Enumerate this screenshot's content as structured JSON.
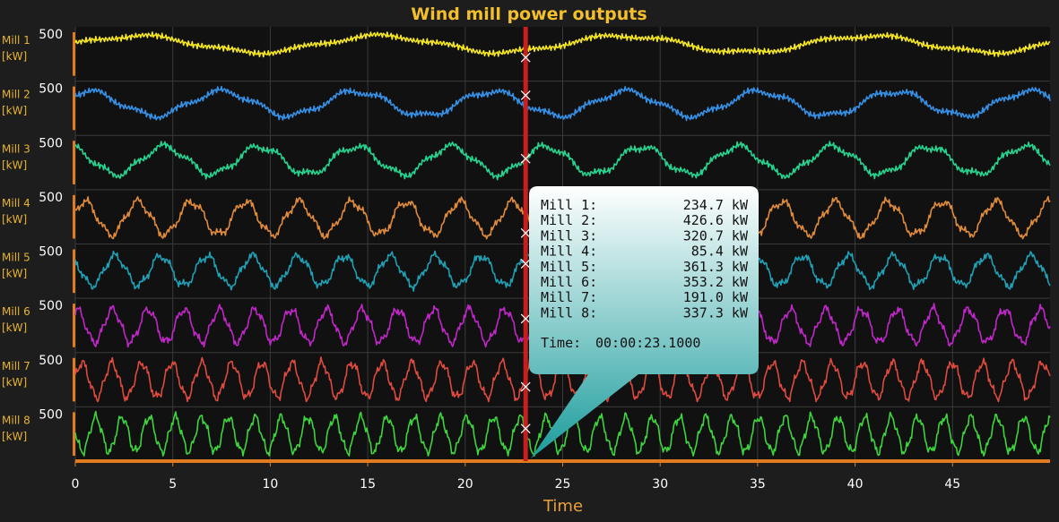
{
  "chart_data": {
    "type": "line",
    "title": "Wind mill power outputs",
    "xlabel": "Time",
    "xlim": [
      0,
      50
    ],
    "x_ticks": [
      0,
      5,
      10,
      15,
      20,
      25,
      30,
      35,
      40,
      45
    ],
    "ylim": [
      0,
      550
    ],
    "grid": true,
    "series": [
      {
        "name": "Mill 1",
        "unit_label": "[kW]",
        "tick_label": "500",
        "color": "#f5e623",
        "period": 12.5,
        "phase": 0.0,
        "base": 390,
        "amp": 95
      },
      {
        "name": "Mill 2",
        "unit_label": "[kW]",
        "tick_label": "500",
        "color": "#3590e6",
        "period": 6.9,
        "phase": 1.0,
        "base": 330,
        "amp": 140
      },
      {
        "name": "Mill 3",
        "unit_label": "[kW]",
        "tick_label": "500",
        "color": "#26d48f",
        "period": 4.9,
        "phase": 2.0,
        "base": 300,
        "amp": 160
      },
      {
        "name": "Mill 4",
        "unit_label": "[kW]",
        "tick_label": "500",
        "color": "#e08a3c",
        "period": 2.75,
        "phase": 0.5,
        "base": 260,
        "amp": 190
      },
      {
        "name": "Mill 5",
        "unit_label": "[kW]",
        "tick_label": "500",
        "color": "#1fa0b5",
        "period": 2.35,
        "phase": 2.4,
        "base": 280,
        "amp": 170
      },
      {
        "name": "Mill 6",
        "unit_label": "[kW]",
        "tick_label": "500",
        "color": "#c026c8",
        "period": 1.83,
        "phase": 1.3,
        "base": 270,
        "amp": 190
      },
      {
        "name": "Mill 7",
        "unit_label": "[kW]",
        "tick_label": "500",
        "color": "#de4a3e",
        "period": 1.54,
        "phase": 0.2,
        "base": 270,
        "amp": 200
      },
      {
        "name": "Mill 8",
        "unit_label": "[kW]",
        "tick_label": "500",
        "color": "#3ed43e",
        "period": 1.36,
        "phase": 3.0,
        "base": 270,
        "amp": 200
      }
    ],
    "cursor": {
      "x": 23.1,
      "readouts": [
        {
          "label": "Mill 1:",
          "value": "234.7 kW"
        },
        {
          "label": "Mill 2:",
          "value": "426.6 kW"
        },
        {
          "label": "Mill 3:",
          "value": "320.7 kW"
        },
        {
          "label": "Mill 4:",
          "value": "85.4 kW"
        },
        {
          "label": "Mill 5:",
          "value": "361.3 kW"
        },
        {
          "label": "Mill 6:",
          "value": "353.2 kW"
        },
        {
          "label": "Mill 7:",
          "value": "191.0 kW"
        },
        {
          "label": "Mill 8:",
          "value": "337.3 kW"
        }
      ],
      "time_label": "Time:",
      "time_value": "00:00:23.1000"
    },
    "colors": {
      "background": "#1d1d1d",
      "plot_background": "#111111",
      "grid": "#3a3a3a",
      "axis": "#e07b20",
      "title": "#f3c02b",
      "cursor": "#c81e1e",
      "tooltip_top": "#ffffff",
      "tooltip_bottom": "#1b9c9c"
    }
  }
}
